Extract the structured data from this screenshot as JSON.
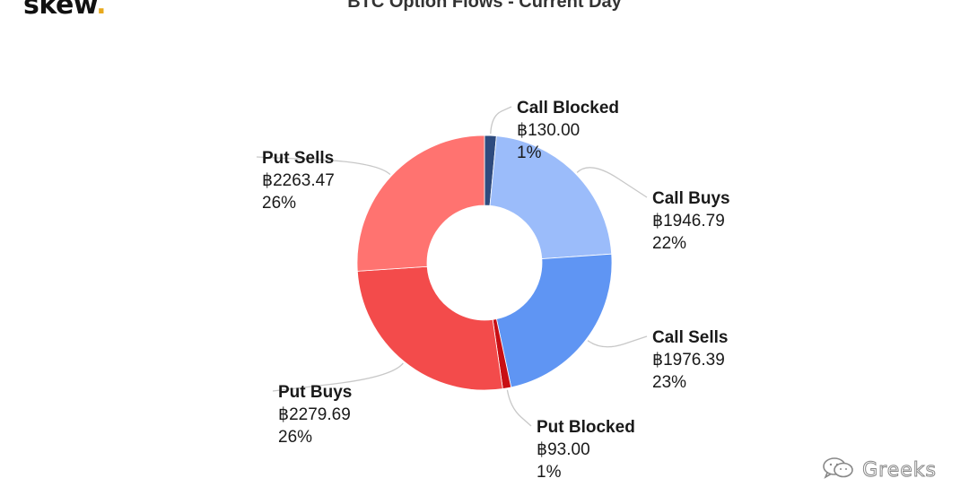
{
  "brand": {
    "logo_text": "skew",
    "logo_dot": "."
  },
  "watermark": {
    "text": "Greeks",
    "icon": "wechat-icon"
  },
  "chart_data": {
    "type": "pie",
    "donut": true,
    "title": "BTC Option Flows - Current Day",
    "currency_symbol": "฿",
    "slices": [
      {
        "name": "Call Blocked",
        "value": 130.0,
        "value_label": "฿130.00",
        "percent_label": "1%",
        "color": "#2e4b7e"
      },
      {
        "name": "Call Buys",
        "value": 1946.79,
        "value_label": "฿1946.79",
        "percent_label": "22%",
        "color": "#9bbcfa"
      },
      {
        "name": "Call Sells",
        "value": 1976.39,
        "value_label": "฿1976.39",
        "percent_label": "23%",
        "color": "#5f95f3"
      },
      {
        "name": "Put Blocked",
        "value": 93.0,
        "value_label": "฿93.00",
        "percent_label": "1%",
        "color": "#c80f14"
      },
      {
        "name": "Put Buys",
        "value": 2279.69,
        "value_label": "฿2279.69",
        "percent_label": "26%",
        "color": "#f34b4b"
      },
      {
        "name": "Put Sells",
        "value": 2263.47,
        "value_label": "฿2263.47",
        "percent_label": "26%",
        "color": "#ff7370"
      }
    ]
  }
}
